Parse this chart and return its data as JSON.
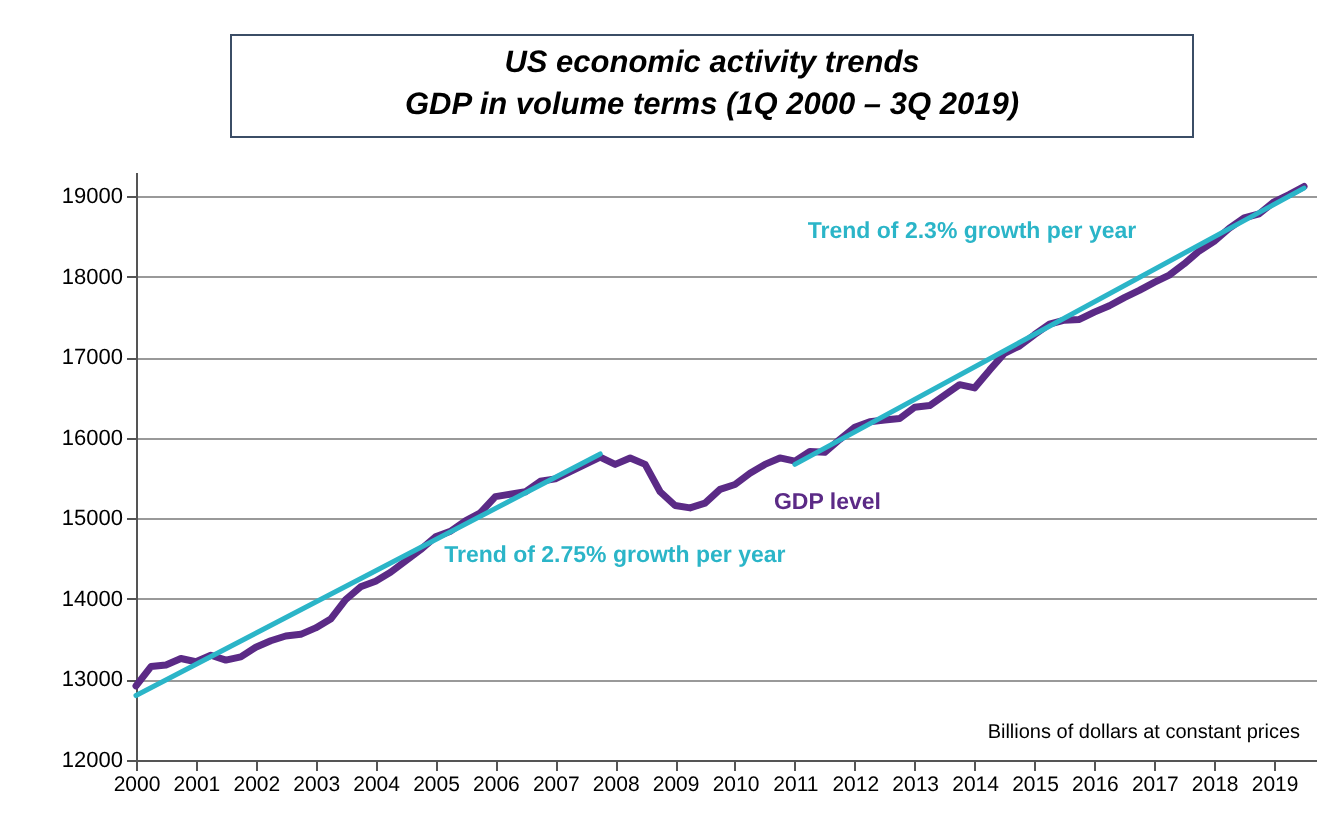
{
  "chart_data": {
    "type": "line",
    "title": "US economic activity trends",
    "subtitle": "GDP in volume terms (1Q 2000 – 3Q 2019)",
    "x": [
      2000.0,
      2000.25,
      2000.5,
      2000.75,
      2001.0,
      2001.25,
      2001.5,
      2001.75,
      2002.0,
      2002.25,
      2002.5,
      2002.75,
      2003.0,
      2003.25,
      2003.5,
      2003.75,
      2004.0,
      2004.25,
      2004.5,
      2004.75,
      2005.0,
      2005.25,
      2005.5,
      2005.75,
      2006.0,
      2006.25,
      2006.5,
      2006.75,
      2007.0,
      2007.25,
      2007.5,
      2007.75,
      2008.0,
      2008.25,
      2008.5,
      2008.75,
      2009.0,
      2009.25,
      2009.5,
      2009.75,
      2010.0,
      2010.25,
      2010.5,
      2010.75,
      2011.0,
      2011.25,
      2011.5,
      2011.75,
      2012.0,
      2012.25,
      2012.5,
      2012.75,
      2013.0,
      2013.25,
      2013.5,
      2013.75,
      2014.0,
      2014.25,
      2014.5,
      2014.75,
      2015.0,
      2015.25,
      2015.5,
      2015.75,
      2016.0,
      2016.25,
      2016.5,
      2016.75,
      2017.0,
      2017.25,
      2017.5,
      2017.75,
      2018.0,
      2018.25,
      2018.5,
      2018.75,
      2019.0,
      2019.25,
      2019.5
    ],
    "series": [
      {
        "name": "GDP level",
        "color": "#5b2a86",
        "values": [
          12920,
          13160,
          13180,
          13260,
          13220,
          13300,
          13240,
          13280,
          13400,
          13480,
          13540,
          13560,
          13640,
          13750,
          13990,
          14150,
          14220,
          14330,
          14470,
          14610,
          14770,
          14840,
          14970,
          15070,
          15270,
          15300,
          15330,
          15460,
          15490,
          15580,
          15670,
          15760,
          15670,
          15750,
          15670,
          15330,
          15160,
          15130,
          15190,
          15360,
          15420,
          15560,
          15670,
          15750,
          15710,
          15830,
          15820,
          15980,
          16130,
          16200,
          16220,
          16240,
          16380,
          16400,
          16530,
          16660,
          16620,
          16840,
          17050,
          17140,
          17280,
          17410,
          17460,
          17470,
          17560,
          17640,
          17740,
          17830,
          17930,
          18020,
          18160,
          18320,
          18440,
          18600,
          18730,
          18780,
          18930,
          19020,
          19120
        ]
      },
      {
        "name": "Trend of 2.75% growth per year",
        "color": "#2bb5c8",
        "x": [
          2000.0,
          2007.75
        ],
        "values": [
          12800,
          15800
        ]
      },
      {
        "name": "Trend of 2.3% growth per year",
        "color": "#2bb5c8",
        "x": [
          2011.0,
          2019.5
        ],
        "values": [
          15670,
          19100
        ]
      }
    ],
    "xlim": [
      2000,
      2019.7
    ],
    "xticks": [
      {
        "value": 2000,
        "label": "2000"
      },
      {
        "value": 2001,
        "label": "2001"
      },
      {
        "value": 2002,
        "label": "2002"
      },
      {
        "value": 2003,
        "label": "2003"
      },
      {
        "value": 2004,
        "label": "2004"
      },
      {
        "value": 2005,
        "label": "2005"
      },
      {
        "value": 2006,
        "label": "2006"
      },
      {
        "value": 2007,
        "label": "2007"
      },
      {
        "value": 2008,
        "label": "2008"
      },
      {
        "value": 2009,
        "label": "2009"
      },
      {
        "value": 2010,
        "label": "2010"
      },
      {
        "value": 2011,
        "label": "2011"
      },
      {
        "value": 2012,
        "label": "2012"
      },
      {
        "value": 2013,
        "label": "2013"
      },
      {
        "value": 2014,
        "label": "2014"
      },
      {
        "value": 2015,
        "label": "2015"
      },
      {
        "value": 2016,
        "label": "2016"
      },
      {
        "value": 2017,
        "label": "2017"
      },
      {
        "value": 2018,
        "label": "2018"
      },
      {
        "value": 2019,
        "label": "2019"
      }
    ],
    "ylim": [
      12000,
      19300
    ],
    "yticks": [
      12000,
      13000,
      14000,
      15000,
      16000,
      17000,
      18000,
      19000
    ],
    "grid": "y",
    "marker": "none",
    "line_style": "solid",
    "annotations": [
      "Billions of dollars at constant prices"
    ]
  }
}
